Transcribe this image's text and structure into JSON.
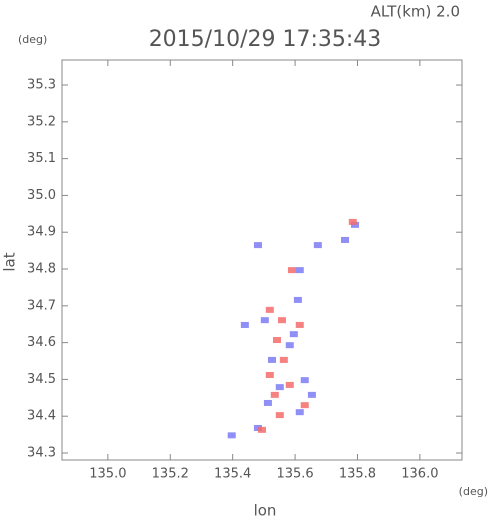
{
  "chart_data": {
    "type": "scatter",
    "title": "2015/10/29 17:35:43",
    "annotation": "ALT(km) 2.0",
    "y_unit": "(deg)",
    "x_unit": "(deg)",
    "xlabel": "lon",
    "ylabel": "lat",
    "xlim": [
      134.853,
      136.135
    ],
    "ylim": [
      34.281,
      35.368
    ],
    "xticks": [
      {
        "value": 135.0,
        "label": "135.0"
      },
      135.2,
      135.4,
      135.6,
      135.8,
      {
        "value": 136.0,
        "label": "136.0"
      }
    ],
    "yticks": [
      34.3,
      34.4,
      34.5,
      34.6,
      34.7,
      34.8,
      34.9,
      {
        "value": 35.0,
        "label": "35.0"
      },
      35.1,
      35.2,
      35.3
    ],
    "series": [
      {
        "color": "#7b7bf5",
        "x": [
          135.397,
          135.481,
          135.615,
          135.654,
          135.631,
          135.526,
          135.583,
          135.503,
          135.609,
          135.439,
          135.481,
          135.615,
          135.673,
          135.76,
          135.792,
          135.551,
          135.513,
          135.596
        ],
        "values": [
          34.348,
          34.368,
          34.411,
          34.458,
          34.498,
          34.553,
          34.593,
          34.661,
          34.716,
          34.648,
          34.865,
          34.797,
          34.865,
          34.879,
          34.92,
          34.479,
          34.436,
          34.623
        ]
      },
      {
        "color": "#f56b6b",
        "x": [
          135.551,
          135.535,
          135.583,
          135.519,
          135.564,
          135.542,
          135.615,
          135.519,
          135.59,
          135.494,
          135.631,
          135.785,
          135.558
        ],
        "values": [
          34.403,
          34.458,
          34.485,
          34.512,
          34.553,
          34.607,
          34.648,
          34.689,
          34.797,
          34.363,
          34.43,
          34.928,
          34.661
        ]
      }
    ]
  }
}
